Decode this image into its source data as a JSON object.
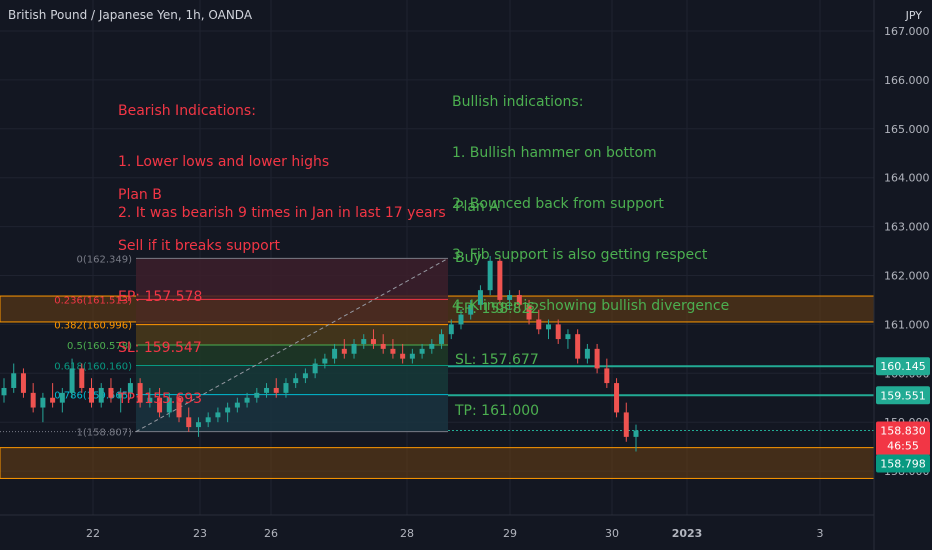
{
  "header": {
    "symbol": "British Pound / Japanese Yen, 1h, OANDA",
    "currency": "JPY"
  },
  "colors": {
    "background": "#131722",
    "grid": "#1f2330",
    "axis_text": "#b2b5be",
    "up": "#26a69a",
    "down": "#ef5350",
    "bearish_text": "#f23645",
    "bullish_text": "#4caf50",
    "zone_fill": "#6b3f12",
    "zone_border": "#ff9800",
    "level_line": "#22ab94"
  },
  "annotations": {
    "bearish": {
      "lines": [
        "Bearish Indications:",
        "1. Lower lows and lower highs",
        "2. It was bearish 9 times in Jan in last 17 years"
      ]
    },
    "bullish": {
      "lines": [
        "Bullish indications:",
        "1. Bullish hammer on bottom",
        "2. Bounced back from support",
        "3. Fib support is also getting respect",
        "4. Klinger is showing bullish divergence"
      ]
    },
    "plan_b": {
      "lines": [
        "Plan B",
        "Sell if it breaks support",
        "EP: 157.578",
        "SL: 159.547",
        "TP: 155.693"
      ]
    },
    "plan_a": {
      "lines": [
        "Plan A",
        "Buy",
        "EP: 158.822",
        "SL: 157.677",
        "TP: 161.000"
      ]
    }
  },
  "chart_data": {
    "type": "candlestick",
    "y_axis": {
      "ticks": [
        "167.000",
        "166.000",
        "165.000",
        "164.000",
        "163.000",
        "162.000",
        "161.000",
        "160.000",
        "159.000",
        "158.000"
      ],
      "range": [
        157.0,
        167.3
      ],
      "position": "right"
    },
    "x_axis": {
      "ticks": [
        "22",
        "23",
        "26",
        "28",
        "29",
        "30",
        "2023",
        "3"
      ]
    },
    "fib_retracement": {
      "levels": [
        {
          "label": "0(162.349)",
          "value": 162.349,
          "color": "#787b86",
          "fill": "#3d1f2a"
        },
        {
          "label": "0.236(161.513)",
          "value": 161.513,
          "color": "#f23645",
          "fill": "#4a2a22"
        },
        {
          "label": "0.382(160.996)",
          "value": 160.996,
          "color": "#ff9800",
          "fill": "#4a3a1a"
        },
        {
          "label": "0.5(160.578)",
          "value": 160.578,
          "color": "#4caf50",
          "fill": "#1e3a26"
        },
        {
          "label": "0.618(160.160)",
          "value": 160.16,
          "color": "#089981",
          "fill": "#163a38"
        },
        {
          "label": "0.786(159.565)",
          "value": 159.565,
          "color": "#00bcd4",
          "fill": "#1a3440"
        },
        {
          "label": "1(158.807)",
          "value": 158.807,
          "color": "#787b86",
          "fill": "#2a2e39"
        }
      ]
    },
    "zones": [
      {
        "name": "resistance",
        "low": 161.05,
        "high": 161.58
      },
      {
        "name": "support",
        "low": 157.85,
        "high": 158.48
      }
    ],
    "horizontal_levels": [
      {
        "value": 160.145,
        "label": "160.145"
      },
      {
        "value": 159.551,
        "label": "159.551"
      }
    ],
    "price_labels": [
      {
        "value": 158.83,
        "label": "158.830",
        "countdown": "46:55",
        "color": "#f23645"
      },
      {
        "value": 158.798,
        "label": "158.798",
        "color": "#089981"
      }
    ],
    "candles": [
      [
        159.55,
        159.9,
        159.4,
        159.7
      ],
      [
        159.7,
        160.2,
        159.6,
        160.0
      ],
      [
        160.0,
        160.1,
        159.5,
        159.6
      ],
      [
        159.6,
        159.8,
        159.2,
        159.3
      ],
      [
        159.3,
        159.6,
        159.0,
        159.5
      ],
      [
        159.5,
        159.8,
        159.3,
        159.4
      ],
      [
        159.4,
        159.7,
        159.2,
        159.6
      ],
      [
        159.6,
        160.3,
        159.5,
        160.1
      ],
      [
        160.1,
        160.2,
        159.6,
        159.7
      ],
      [
        159.7,
        159.9,
        159.3,
        159.4
      ],
      [
        159.4,
        159.8,
        159.3,
        159.7
      ],
      [
        159.7,
        159.9,
        159.4,
        159.5
      ],
      [
        159.5,
        159.7,
        159.2,
        159.6
      ],
      [
        159.6,
        159.9,
        159.5,
        159.8
      ],
      [
        159.8,
        159.9,
        159.3,
        159.4
      ],
      [
        159.4,
        159.7,
        159.3,
        159.5
      ],
      [
        159.5,
        159.7,
        159.1,
        159.2
      ],
      [
        159.2,
        159.6,
        159.1,
        159.5
      ],
      [
        159.5,
        159.6,
        159.0,
        159.1
      ],
      [
        159.1,
        159.3,
        158.8,
        158.9
      ],
      [
        158.9,
        159.1,
        158.7,
        159.0
      ],
      [
        159.0,
        159.2,
        158.9,
        159.1
      ],
      [
        159.1,
        159.3,
        159.0,
        159.2
      ],
      [
        159.2,
        159.4,
        159.0,
        159.3
      ],
      [
        159.3,
        159.5,
        159.2,
        159.4
      ],
      [
        159.4,
        159.6,
        159.3,
        159.5
      ],
      [
        159.5,
        159.7,
        159.4,
        159.6
      ],
      [
        159.6,
        159.8,
        159.5,
        159.7
      ],
      [
        159.7,
        159.9,
        159.5,
        159.6
      ],
      [
        159.6,
        159.9,
        159.5,
        159.8
      ],
      [
        159.8,
        160.0,
        159.7,
        159.9
      ],
      [
        159.9,
        160.1,
        159.8,
        160.0
      ],
      [
        160.0,
        160.3,
        159.9,
        160.2
      ],
      [
        160.2,
        160.4,
        160.1,
        160.3
      ],
      [
        160.3,
        160.6,
        160.2,
        160.5
      ],
      [
        160.5,
        160.7,
        160.3,
        160.4
      ],
      [
        160.4,
        160.7,
        160.3,
        160.6
      ],
      [
        160.6,
        160.8,
        160.5,
        160.7
      ],
      [
        160.7,
        160.9,
        160.5,
        160.6
      ],
      [
        160.6,
        160.8,
        160.4,
        160.5
      ],
      [
        160.5,
        160.7,
        160.3,
        160.4
      ],
      [
        160.4,
        160.6,
        160.2,
        160.3
      ],
      [
        160.3,
        160.5,
        160.2,
        160.4
      ],
      [
        160.4,
        160.6,
        160.3,
        160.5
      ],
      [
        160.5,
        160.7,
        160.4,
        160.6
      ],
      [
        160.6,
        160.9,
        160.5,
        160.8
      ],
      [
        160.8,
        161.1,
        160.7,
        161.0
      ],
      [
        161.0,
        161.3,
        160.9,
        161.2
      ],
      [
        161.2,
        161.5,
        161.1,
        161.4
      ],
      [
        161.4,
        161.8,
        161.3,
        161.7
      ],
      [
        161.7,
        162.4,
        161.6,
        162.3
      ],
      [
        162.3,
        162.35,
        161.4,
        161.5
      ],
      [
        161.5,
        161.7,
        161.3,
        161.6
      ],
      [
        161.6,
        161.7,
        161.3,
        161.4
      ],
      [
        161.4,
        161.5,
        161.0,
        161.1
      ],
      [
        161.1,
        161.3,
        160.8,
        160.9
      ],
      [
        160.9,
        161.1,
        160.7,
        161.0
      ],
      [
        161.0,
        161.1,
        160.6,
        160.7
      ],
      [
        160.7,
        160.9,
        160.5,
        160.8
      ],
      [
        160.8,
        160.9,
        160.2,
        160.3
      ],
      [
        160.3,
        160.6,
        160.2,
        160.5
      ],
      [
        160.5,
        160.6,
        160.0,
        160.1
      ],
      [
        160.1,
        160.3,
        159.7,
        159.8
      ],
      [
        159.8,
        159.9,
        159.1,
        159.2
      ],
      [
        159.2,
        159.4,
        158.6,
        158.7
      ],
      [
        158.7,
        158.95,
        158.4,
        158.83
      ]
    ]
  }
}
